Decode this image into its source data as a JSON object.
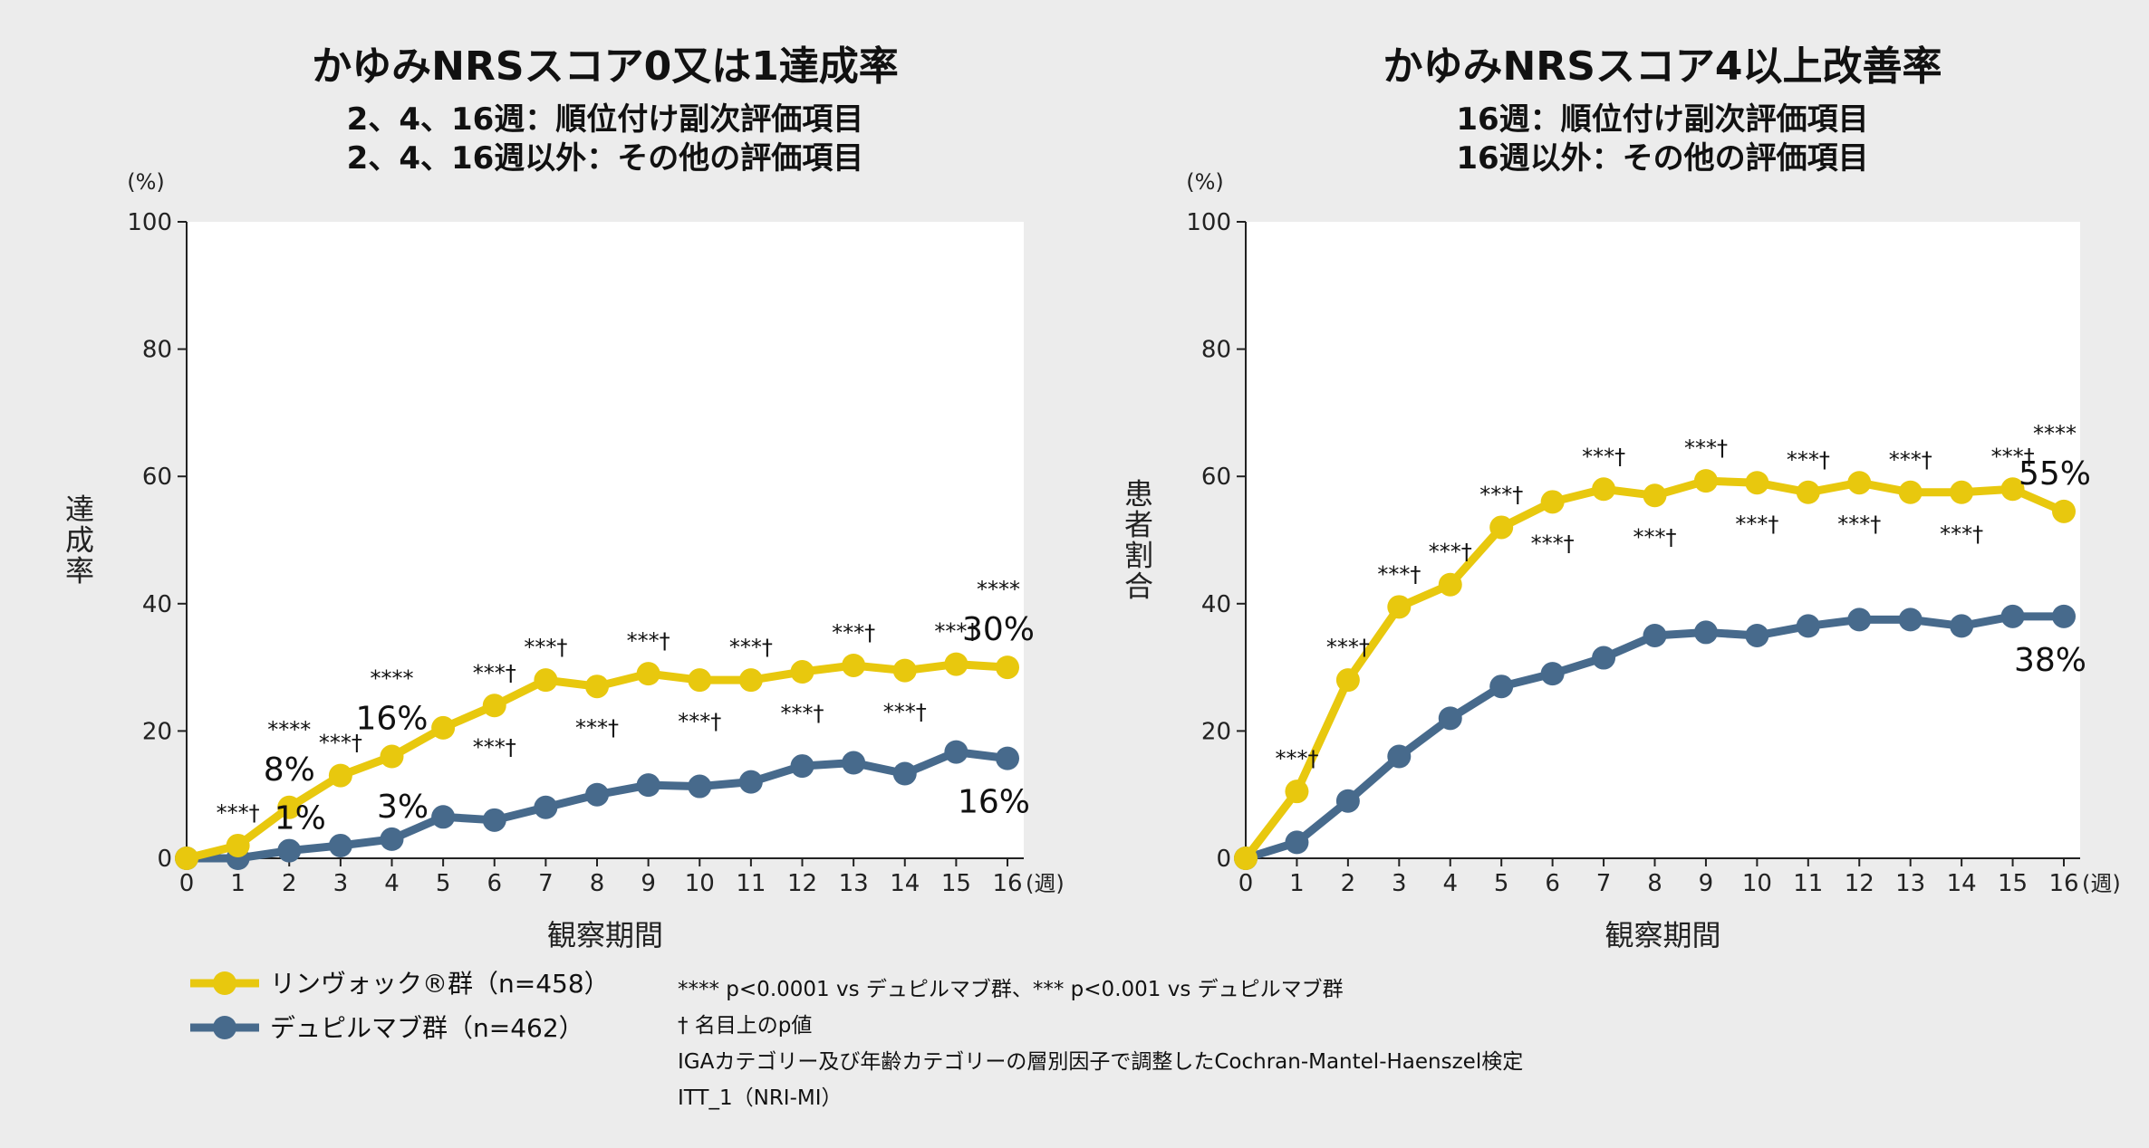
{
  "colors": {
    "upadacitinib": "#e8c80e",
    "dupilumab": "#476a8c",
    "background": "#ececec",
    "plot_bg": "#ffffff",
    "axis": "#222222"
  },
  "legend": {
    "items": [
      {
        "series": "upadacitinib",
        "label": "リンヴォック®群（n=458）"
      },
      {
        "series": "dupilumab",
        "label": "デュピルマブ群（n=462）"
      }
    ]
  },
  "footnotes": [
    "**** p<0.0001 vs デュピルマブ群、*** p<0.001 vs デュピルマブ群",
    "† 名目上のp値",
    "IGAカテゴリー及び年齢カテゴリーの層別因子で調整したCochran-Mantel-Haenszel検定",
    "ITT_1（NRI-MI）"
  ],
  "chart_data": [
    {
      "type": "line",
      "title": "かゆみNRSスコア0又は1達成率",
      "subtitle": [
        "2、4、16週：順位付け副次評価項目",
        "2、4、16週以外：その他の評価項目"
      ],
      "xlabel": "観察期間",
      "xunit": "(週)",
      "ylabel": "達成率",
      "yunit": "(%)",
      "x": [
        0,
        1,
        2,
        3,
        4,
        5,
        6,
        7,
        8,
        9,
        10,
        11,
        12,
        13,
        14,
        15,
        16
      ],
      "ylim": [
        0,
        100
      ],
      "yticks": [
        0,
        20,
        40,
        60,
        80,
        100
      ],
      "series": [
        {
          "key": "upadacitinib",
          "name": "リンヴォック®群（n=458）",
          "values": [
            0,
            2,
            8,
            13,
            16,
            20.5,
            24,
            28,
            27,
            29,
            28,
            28,
            29.3,
            30.3,
            29.5,
            30.5,
            30
          ]
        },
        {
          "key": "dupilumab",
          "name": "デュピルマブ群（n=462）",
          "values": [
            0,
            0,
            1.2,
            2,
            3,
            6.5,
            6,
            8,
            10,
            11.5,
            11.3,
            12,
            14.5,
            15,
            13.3,
            16.7,
            15.7
          ]
        }
      ],
      "significance": [
        {
          "x": 1,
          "text": "***†",
          "pos": "above"
        },
        {
          "x": 3,
          "text": "***†",
          "pos": "above"
        },
        {
          "x": 6,
          "text": "***†",
          "pos": "above"
        },
        {
          "x": 6,
          "text": "***†",
          "pos": "below"
        },
        {
          "x": 7,
          "text": "***†",
          "pos": "above"
        },
        {
          "x": 8,
          "text": "***†",
          "pos": "below"
        },
        {
          "x": 9,
          "text": "***†",
          "pos": "above"
        },
        {
          "x": 10,
          "text": "***†",
          "pos": "below"
        },
        {
          "x": 11,
          "text": "***†",
          "pos": "above"
        },
        {
          "x": 12,
          "text": "***†",
          "pos": "below"
        },
        {
          "x": 13,
          "text": "***†",
          "pos": "above"
        },
        {
          "x": 14,
          "text": "***†",
          "pos": "below"
        },
        {
          "x": 15,
          "text": "***†",
          "pos": "above"
        }
      ],
      "value_labels": [
        {
          "x": 2,
          "series": "upadacitinib",
          "text": "8%",
          "stars": "****"
        },
        {
          "x": 4,
          "series": "upadacitinib",
          "text": "16%",
          "stars": "****"
        },
        {
          "x": 16,
          "series": "upadacitinib",
          "text": "30%",
          "stars": "****"
        },
        {
          "x": 2,
          "series": "dupilumab",
          "text": "1%"
        },
        {
          "x": 4,
          "series": "dupilumab",
          "text": "3%"
        },
        {
          "x": 16,
          "series": "dupilumab",
          "text": "16%"
        }
      ]
    },
    {
      "type": "line",
      "title": "かゆみNRSスコア4以上改善率",
      "subtitle": [
        "16週：順位付け副次評価項目",
        "16週以外：その他の評価項目"
      ],
      "xlabel": "観察期間",
      "xunit": "(週)",
      "ylabel": "患者割合",
      "yunit": "(%)",
      "x": [
        0,
        1,
        2,
        3,
        4,
        5,
        6,
        7,
        8,
        9,
        10,
        11,
        12,
        13,
        14,
        15,
        16
      ],
      "ylim": [
        0,
        100
      ],
      "yticks": [
        0,
        20,
        40,
        60,
        80,
        100
      ],
      "series": [
        {
          "key": "upadacitinib",
          "name": "リンヴォック®群（n=458）",
          "values": [
            0,
            10.5,
            28,
            39.5,
            43,
            52,
            56,
            58,
            57,
            59.3,
            59,
            57.5,
            59,
            57.5,
            57.5,
            58,
            54.5
          ]
        },
        {
          "key": "dupilumab",
          "name": "デュピルマブ群（n=462）",
          "values": [
            0,
            2.5,
            9,
            16,
            22,
            27,
            29,
            31.5,
            35,
            35.5,
            35,
            36.5,
            37.5,
            37.5,
            36.5,
            38,
            38
          ]
        }
      ],
      "significance": [
        {
          "x": 1,
          "text": "***†",
          "pos": "above"
        },
        {
          "x": 2,
          "text": "***†",
          "pos": "above"
        },
        {
          "x": 3,
          "text": "***†",
          "pos": "above"
        },
        {
          "x": 4,
          "text": "***†",
          "pos": "above"
        },
        {
          "x": 5,
          "text": "***†",
          "pos": "above"
        },
        {
          "x": 6,
          "text": "***†",
          "pos": "below"
        },
        {
          "x": 7,
          "text": "***†",
          "pos": "above"
        },
        {
          "x": 8,
          "text": "***†",
          "pos": "below"
        },
        {
          "x": 9,
          "text": "***†",
          "pos": "above"
        },
        {
          "x": 10,
          "text": "***†",
          "pos": "below"
        },
        {
          "x": 11,
          "text": "***†",
          "pos": "above"
        },
        {
          "x": 12,
          "text": "***†",
          "pos": "below"
        },
        {
          "x": 13,
          "text": "***†",
          "pos": "above"
        },
        {
          "x": 14,
          "text": "***†",
          "pos": "below"
        },
        {
          "x": 15,
          "text": "***†",
          "pos": "above"
        }
      ],
      "value_labels": [
        {
          "x": 16,
          "series": "upadacitinib",
          "text": "55%",
          "stars": "****"
        },
        {
          "x": 16,
          "series": "dupilumab",
          "text": "38%"
        }
      ]
    }
  ]
}
